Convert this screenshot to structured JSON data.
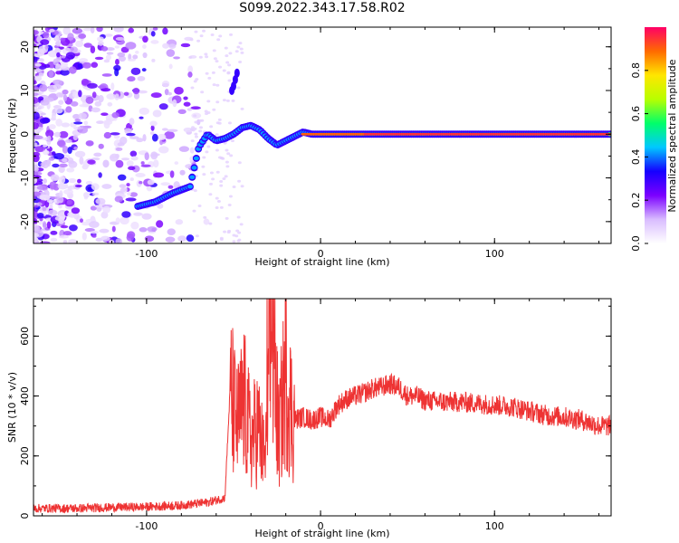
{
  "title": "S099.2022.343.17.58.R02",
  "chart_data": [
    {
      "type": "heatmap",
      "xlabel": "Height of straight line (km)",
      "ylabel": "Frequency (Hz)",
      "xlim": [
        -165,
        167
      ],
      "ylim": [
        -25,
        24.5
      ],
      "x_ticks": [
        -100,
        0,
        100
      ],
      "y_ticks": [
        -20,
        -10,
        0,
        10,
        20
      ],
      "grid": false,
      "colorbar": {
        "label": "Normalized spectral amplitude",
        "range": [
          0,
          1
        ],
        "ticks": [
          0.0,
          0.2,
          0.4,
          0.6,
          0.8
        ],
        "colors": [
          "#ffffff",
          "#d9bcff",
          "#7b00ff",
          "#1500ff",
          "#00c8ff",
          "#00ff6a",
          "#b8ff00",
          "#ffe600",
          "#ff6a00",
          "#ff0066"
        ]
      },
      "ridge": {
        "x": [
          -105,
          -95,
          -85,
          -75,
          -70,
          -65,
          -60,
          -55,
          -50,
          -45,
          -40,
          -35,
          -30,
          -25,
          -20,
          -15,
          -10,
          -5,
          0,
          20,
          50,
          90,
          130,
          167
        ],
        "y": [
          -16.5,
          -15.5,
          -13.5,
          -12,
          -3,
          0,
          -1.5,
          -1,
          0,
          1.5,
          2,
          1,
          -1,
          -2.5,
          -1.5,
          -0.5,
          0.5,
          0,
          0,
          0,
          0,
          0,
          0,
          0
        ]
      }
    },
    {
      "type": "line",
      "xlabel": "Height of straight line (km)",
      "ylabel": "SNR (10 * v/v)",
      "xlim": [
        -165,
        167
      ],
      "ylim": [
        0,
        725
      ],
      "x_ticks": [
        -100,
        0,
        100
      ],
      "y_ticks": [
        0,
        200,
        400,
        600
      ],
      "grid": false,
      "color": "#ee3333",
      "series": [
        {
          "x": [
            -165,
            -140,
            -120,
            -100,
            -80,
            -65,
            -55,
            -52,
            -48,
            -44,
            -40,
            -36,
            -32,
            -28,
            -24,
            -20,
            -16,
            -10,
            -5,
            0,
            5,
            10,
            15,
            20,
            25,
            30,
            35,
            40,
            45,
            50,
            55,
            60,
            70,
            80,
            90,
            100,
            110,
            120,
            130,
            140,
            150,
            160,
            167
          ],
          "y": [
            25,
            25,
            28,
            30,
            35,
            45,
            60,
            420,
            300,
            380,
            250,
            300,
            180,
            640,
            260,
            480,
            320,
            330,
            320,
            330,
            320,
            370,
            390,
            400,
            410,
            425,
            430,
            440,
            430,
            400,
            400,
            385,
            380,
            380,
            375,
            370,
            365,
            350,
            335,
            330,
            320,
            300,
            300
          ]
        }
      ]
    }
  ]
}
